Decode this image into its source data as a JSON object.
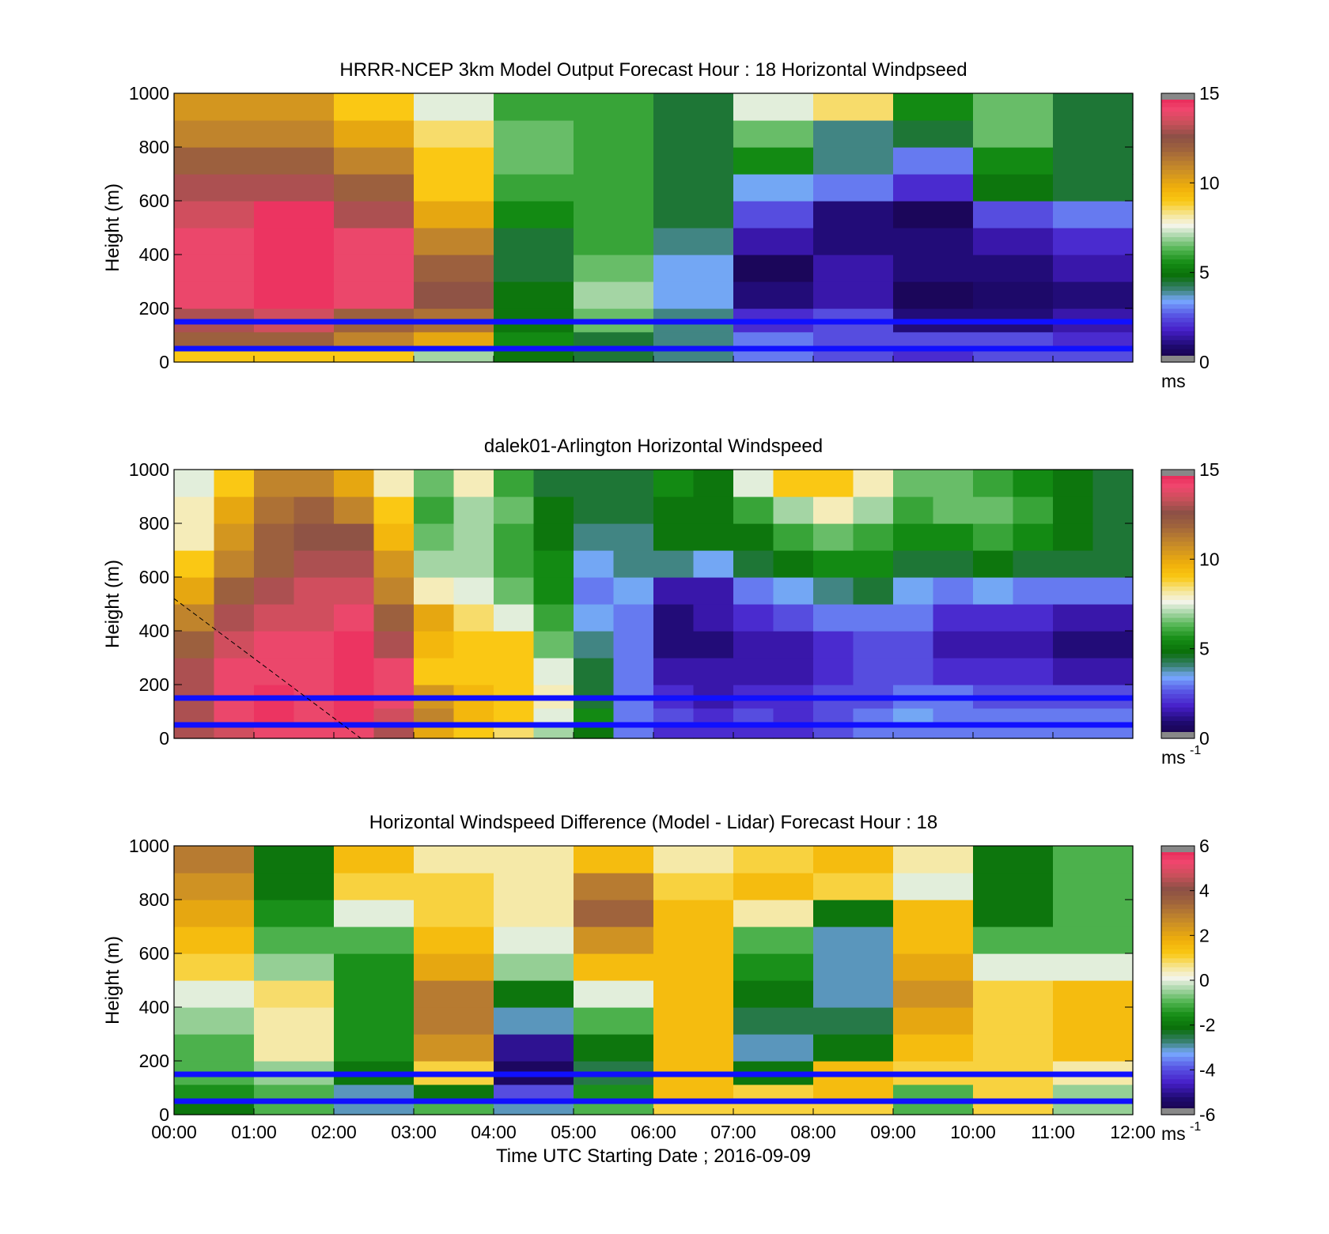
{
  "chart_data": [
    {
      "type": "heatmap",
      "title": "HRRR-NCEP 3km Model Output   Forecast Hour : 18 Horizontal Windpseed",
      "ylabel": "Height (m)",
      "ylim": [
        0,
        1000
      ],
      "yticks": [
        "0",
        "200",
        "400",
        "600",
        "800",
        "1000"
      ],
      "xlim_hours": [
        0,
        12
      ],
      "colorbar": {
        "min": 0,
        "max": 15,
        "ticks": [
          "0",
          "5",
          "10",
          "15"
        ],
        "unit": "ms",
        "unit_sup": ""
      },
      "columns_hours": [
        0,
        1,
        2,
        3,
        4,
        5,
        6,
        7,
        8,
        9,
        10,
        11
      ],
      "heights_m": [
        25,
        75,
        150,
        250,
        350,
        450,
        550,
        650,
        750,
        850,
        950
      ],
      "values": [
        [
          9,
          12,
          13,
          14,
          14,
          14,
          13.5,
          13,
          12,
          11,
          10.5
        ],
        [
          9,
          12,
          13.5,
          14.5,
          14.5,
          14.5,
          14.5,
          13,
          12,
          11,
          10.5
        ],
        [
          9,
          11,
          12,
          14,
          14,
          14,
          13,
          12,
          11,
          10,
          9
        ],
        [
          7,
          10,
          11.5,
          12.5,
          12,
          11,
          10,
          9,
          9,
          8.5,
          7.5
        ],
        [
          5,
          5.5,
          5,
          5,
          4.5,
          4.5,
          5.5,
          6,
          6.5,
          6.5,
          6
        ],
        [
          4.5,
          4.5,
          6.5,
          7,
          6.5,
          6,
          6,
          6,
          6,
          6,
          6
        ],
        [
          4,
          4,
          4,
          3.5,
          3.5,
          4,
          4.5,
          4.5,
          4.5,
          4.5,
          4.5
        ],
        [
          3,
          3,
          2,
          1,
          0.5,
          1.5,
          2.5,
          3.5,
          5.5,
          6.5,
          7.5
        ],
        [
          2.5,
          2.5,
          2.5,
          1.5,
          1.5,
          1,
          1,
          3,
          4,
          4,
          8.5
        ],
        [
          2,
          2.5,
          1,
          0.5,
          1,
          1,
          0.5,
          2,
          3,
          4.5,
          5.5
        ],
        [
          2.5,
          2.5,
          1,
          0.8,
          1,
          1.5,
          2.5,
          5,
          5.5,
          6.5,
          6.5
        ],
        [
          2.5,
          2,
          1.5,
          1,
          1.5,
          2,
          3,
          4.5,
          4.5,
          4.5,
          4.5
        ]
      ]
    },
    {
      "type": "heatmap",
      "title": "dalek01-Arlington  Horizontal Windspeed",
      "ylabel": "Height (m)",
      "ylim": [
        0,
        1000
      ],
      "yticks": [
        "0",
        "200",
        "400",
        "600",
        "800",
        "1000"
      ],
      "xlim_hours": [
        0,
        12
      ],
      "colorbar": {
        "min": 0,
        "max": 15,
        "ticks": [
          "0",
          "5",
          "10",
          "15"
        ],
        "unit": "ms",
        "unit_sup": "-1"
      },
      "columns_hours": [
        0,
        0.5,
        1,
        1.5,
        2,
        2.5,
        3,
        3.5,
        4,
        4.5,
        5,
        5.5,
        6,
        6.5,
        7,
        7.5,
        8,
        8.5,
        9,
        9.5,
        10,
        10.5,
        11,
        11.5
      ],
      "heights_m": [
        25,
        75,
        150,
        250,
        350,
        450,
        550,
        650,
        750,
        850,
        950
      ],
      "values": [
        [
          13,
          13,
          13,
          13,
          12,
          11,
          10,
          9,
          8,
          8,
          7.5
        ],
        [
          13.5,
          14,
          14,
          14,
          13.5,
          13,
          12,
          11,
          10.5,
          10,
          9
        ],
        [
          14,
          14.5,
          14.5,
          14,
          14,
          13.5,
          13,
          12,
          12,
          11.5,
          11
        ],
        [
          14,
          14,
          14,
          14,
          14,
          13.5,
          13.5,
          13,
          12.5,
          12,
          11
        ],
        [
          14,
          14.5,
          14.5,
          14.5,
          14.5,
          14,
          13.5,
          13,
          12.5,
          11,
          10
        ],
        [
          13,
          13.5,
          14,
          14,
          13,
          12,
          11,
          10.5,
          9.5,
          9,
          8
        ],
        [
          10,
          11,
          10.5,
          9,
          9.5,
          10,
          8,
          7,
          6.5,
          6,
          6.5
        ],
        [
          9,
          9.5,
          9.5,
          9,
          9,
          8.5,
          7.5,
          7,
          7,
          7,
          8
        ],
        [
          8.5,
          9,
          9,
          9,
          9,
          7.5,
          6.5,
          6,
          6,
          6.5,
          6
        ],
        [
          7,
          7.5,
          8,
          7.5,
          6.5,
          6,
          5.5,
          5.5,
          5,
          5,
          4.5
        ],
        [
          5,
          5.5,
          4.5,
          4.5,
          4,
          3.5,
          3,
          3.5,
          4,
          4.5,
          4.5
        ],
        [
          3,
          3,
          3,
          3,
          3,
          3,
          3.5,
          4,
          4,
          4.5,
          4.5
        ],
        [
          2,
          2.5,
          2,
          1.5,
          1,
          1,
          1.5,
          4,
          5,
          5,
          5.5
        ],
        [
          2,
          2,
          1.5,
          1.5,
          1,
          1.5,
          1.5,
          3.5,
          5,
          5,
          5
        ],
        [
          2,
          2.5,
          2,
          1.5,
          1.5,
          2,
          3,
          4.5,
          5,
          6,
          7.5
        ],
        [
          2,
          2,
          2,
          1.5,
          1.5,
          2.5,
          3.5,
          5,
          6,
          7,
          9
        ],
        [
          2.5,
          2.5,
          2.5,
          2,
          2,
          3,
          4,
          5.5,
          6.5,
          8,
          9
        ],
        [
          3,
          3,
          2.5,
          2.5,
          2.5,
          3,
          4.5,
          5.5,
          6,
          7,
          8
        ],
        [
          3,
          3.5,
          3,
          2.5,
          2.5,
          3,
          3.5,
          4.5,
          5.5,
          6,
          6.5
        ],
        [
          3,
          3,
          3,
          2,
          1.5,
          2,
          3,
          4.5,
          5.5,
          6.5,
          6.5
        ],
        [
          3,
          3,
          2.5,
          2,
          1.5,
          2,
          3.5,
          5,
          6,
          6.5,
          6
        ],
        [
          3,
          3,
          2.5,
          2,
          1.5,
          2,
          3,
          4.5,
          5.5,
          6,
          5.5
        ],
        [
          3,
          3,
          2.5,
          1.5,
          1,
          1.5,
          3,
          4.5,
          5,
          5,
          5
        ],
        [
          3,
          3,
          2.5,
          1.5,
          1,
          1.5,
          3,
          4.5,
          4.5,
          4.5,
          4.5
        ]
      ]
    },
    {
      "type": "heatmap",
      "title": "Horizontal Windspeed Difference (Model - Lidar) Forecast Hour : 18",
      "xlabel": "Time UTC  Starting Date ; 2016-09-09",
      "ylabel": "Height (m)",
      "ylim": [
        0,
        1000
      ],
      "yticks": [
        "0",
        "200",
        "400",
        "600",
        "800",
        "1000"
      ],
      "xlim_hours": [
        0,
        12
      ],
      "xticks": [
        "00:00",
        "01:00",
        "02:00",
        "03:00",
        "04:00",
        "05:00",
        "06:00",
        "07:00",
        "08:00",
        "09:00",
        "10:00",
        "11:00",
        "12:00"
      ],
      "colorbar": {
        "min": -6,
        "max": 6,
        "ticks": [
          "-6",
          "-4",
          "-2",
          "0",
          "2",
          "4",
          "6"
        ],
        "unit": "ms",
        "unit_sup": "-1"
      },
      "columns_hours": [
        0,
        1,
        2,
        3,
        4,
        5,
        6,
        7,
        8,
        9,
        10,
        11
      ],
      "heights_m": [
        25,
        75,
        150,
        250,
        350,
        450,
        550,
        650,
        750,
        850,
        950
      ],
      "values": [
        [
          -2,
          -1.5,
          -1,
          -1,
          -0.5,
          0,
          1,
          1.5,
          2,
          2.5,
          3
        ],
        [
          -1,
          -1,
          -0.5,
          0.5,
          0.5,
          0.8,
          -0.5,
          -1,
          -1.5,
          -2,
          -2
        ],
        [
          -3,
          -3,
          -2,
          -1.5,
          -1.5,
          -1.5,
          -1.5,
          -1,
          0,
          1,
          1.5
        ],
        [
          -1,
          -2,
          1,
          2.5,
          3,
          3,
          2,
          1.5,
          1,
          1,
          0.5
        ],
        [
          -3,
          -4,
          -5.5,
          -5,
          -3,
          -2,
          -0.5,
          0,
          0.5,
          0.5,
          0.5
        ],
        [
          -1,
          -1.5,
          -2.5,
          -2,
          -1,
          0,
          1.5,
          2.5,
          3.5,
          3,
          1.5
        ],
        [
          1,
          1.5,
          1.5,
          1.5,
          1.5,
          1.5,
          1.5,
          1.5,
          1.5,
          1,
          0.5
        ],
        [
          1,
          1,
          -2,
          -3,
          -2.5,
          -2,
          -1.5,
          -1,
          0.5,
          1.5,
          1
        ],
        [
          1,
          1.5,
          1.5,
          -2,
          -2.5,
          -3,
          -3,
          -3,
          -2,
          1,
          1.5
        ],
        [
          -1,
          -1,
          1,
          1.5,
          2,
          2.5,
          2,
          1.5,
          1.5,
          0,
          0.5
        ],
        [
          1,
          1,
          1,
          1,
          1,
          1,
          0,
          -1,
          -2,
          -2,
          -2
        ],
        [
          -0.5,
          -0.5,
          0.5,
          1.5,
          1.5,
          1.5,
          0,
          -1,
          -1,
          -1,
          -1
        ]
      ]
    }
  ],
  "reference_lines_m": [
    150,
    50
  ]
}
